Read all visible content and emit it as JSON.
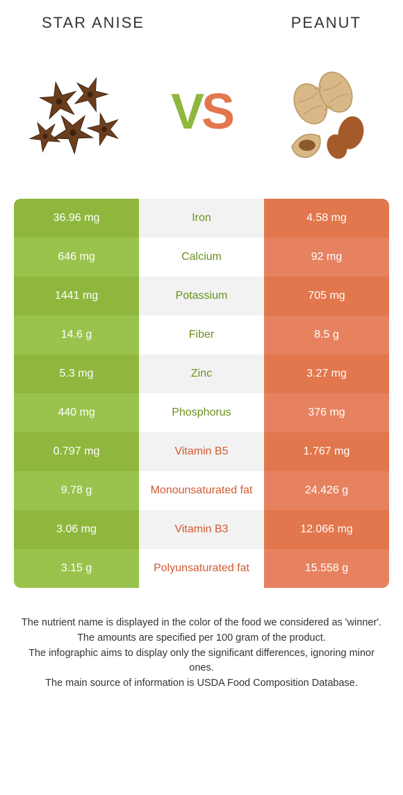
{
  "colors": {
    "left_food": "#8fb73e",
    "right_food": "#e2764c",
    "left_row_a": "#8fb73e",
    "left_row_b": "#9ac34e",
    "mid_row_a": "#f2f2f2",
    "mid_row_b": "#ffffff",
    "right_row_a": "#e2764c",
    "right_row_b": "#e68260",
    "nutrient_left_win": "#6a8f1f",
    "nutrient_right_win": "#d15a30"
  },
  "header": {
    "left_title": "Star anise",
    "right_title": "Peanut"
  },
  "vs": {
    "v": "V",
    "s": "S"
  },
  "rows": [
    {
      "left": "36.96 mg",
      "mid": "Iron",
      "right": "4.58 mg",
      "winner": "left"
    },
    {
      "left": "646 mg",
      "mid": "Calcium",
      "right": "92 mg",
      "winner": "left"
    },
    {
      "left": "1441 mg",
      "mid": "Potassium",
      "right": "705 mg",
      "winner": "left"
    },
    {
      "left": "14.6 g",
      "mid": "Fiber",
      "right": "8.5 g",
      "winner": "left"
    },
    {
      "left": "5.3 mg",
      "mid": "Zinc",
      "right": "3.27 mg",
      "winner": "left"
    },
    {
      "left": "440 mg",
      "mid": "Phosphorus",
      "right": "376 mg",
      "winner": "left"
    },
    {
      "left": "0.797 mg",
      "mid": "Vitamin B5",
      "right": "1.767 mg",
      "winner": "right"
    },
    {
      "left": "9.78 g",
      "mid": "Monounsaturated fat",
      "right": "24.426 g",
      "winner": "right"
    },
    {
      "left": "3.06 mg",
      "mid": "Vitamin B3",
      "right": "12.066 mg",
      "winner": "right"
    },
    {
      "left": "3.15 g",
      "mid": "Polyunsaturated fat",
      "right": "15.558 g",
      "winner": "right"
    }
  ],
  "footer": {
    "line1": "The nutrient name is displayed in the color of the food we considered as 'winner'.",
    "line2": "The amounts are specified per 100 gram of the product.",
    "line3": "The infographic aims to display only the significant differences, ignoring minor ones.",
    "line4": "The main source of information is USDA Food Composition Database."
  }
}
